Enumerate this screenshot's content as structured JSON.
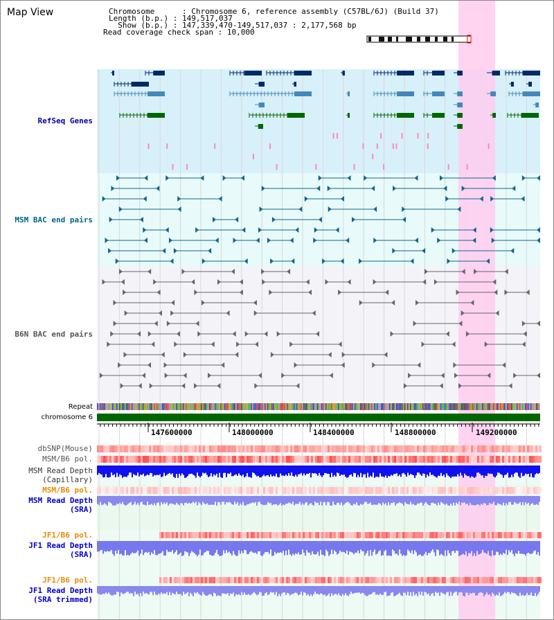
{
  "title": "Map View",
  "info": {
    "chromosome_label": "Chromosome",
    "chromosome_value": "Chromosome 6, reference assembly (C57BL/6J) (Build 37)",
    "length_label": "Length (b.p.)",
    "length_value": "149,517,037",
    "show_label": "Show (b.p.)",
    "show_value": "147,339,470-149,517,037 : 2,177,568 bp",
    "coverage_label": "Read coverage check span",
    "coverage_value": "10,000"
  },
  "tracks": {
    "refseq": "RefSeq Genes",
    "msm_bac": "MSM BAC end pairs",
    "b6n_bac": "B6N BAC end pairs",
    "repeat": "Repeat",
    "chromosome": "chromosome 6",
    "dbsnp": "dbSNP(Mouse)",
    "msm_b6_pol_1": "MSM/B6 pol.",
    "msm_depth_cap_1": "MSM Read Depth",
    "msm_depth_cap_2": "(Capillary)",
    "msm_b6_pol_2": "MSM/B6 pol.",
    "msm_depth_sra_1": "MSM Read Depth",
    "msm_depth_sra_2": "(SRA)",
    "jf1_b6_pol_1": "JF1/B6 pol.",
    "jf1_depth_sra_1": "JF1 Read Depth",
    "jf1_depth_sra_2": "(SRA)",
    "jf1_b6_pol_2": "JF1/B6 pol.",
    "jf1_depth_trim_1": "JF1 Read Depth",
    "jf1_depth_trim_2": "(SRA trimmed)"
  },
  "axis": {
    "ticks": [
      "147600000",
      "148000000",
      "148400000",
      "148800000",
      "149200000"
    ]
  },
  "colors": {
    "refseq_label": "#0000aa",
    "msm_label": "#006688",
    "b6n_label": "#555555",
    "pol_orange": "#ee8800",
    "depth_blue": "#0000cc",
    "highlight_pink": "#ffccee",
    "chromosome_green": "#006600"
  }
}
